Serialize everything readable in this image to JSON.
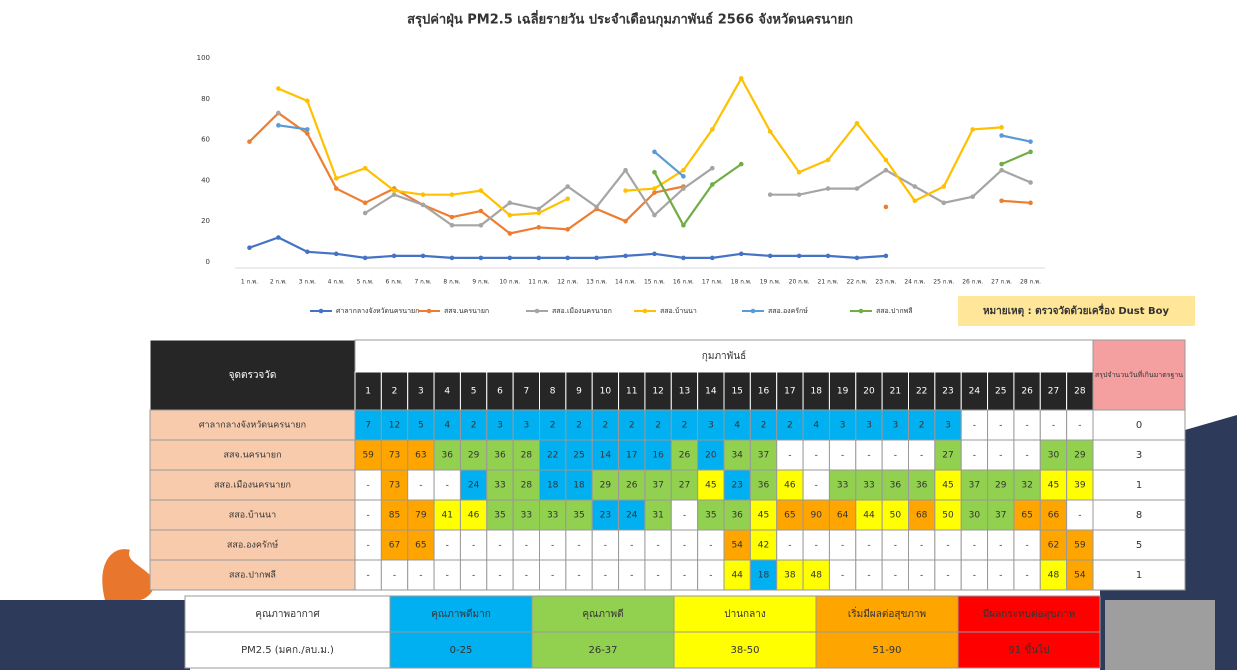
{
  "chart_data": {
    "type": "line",
    "title": "สรุปค่าฝุ่น PM2.5 เฉลี่ยรายวัน ประจำเดือนกุมภาพันธ์ 2566 จังหวัดนครนายก",
    "categories": [
      "1 ก.พ.",
      "2 ก.พ.",
      "3 ก.พ.",
      "4 ก.พ.",
      "5 ก.พ.",
      "6 ก.พ.",
      "7 ก.พ.",
      "8 ก.พ.",
      "9 ก.พ.",
      "10 ก.พ.",
      "11 ก.พ.",
      "12 ก.พ.",
      "13 ก.พ.",
      "14 ก.พ.",
      "15 ก.พ.",
      "16 ก.พ.",
      "17 ก.พ.",
      "18 ก.พ.",
      "19 ก.พ.",
      "20 ก.พ.",
      "21 ก.พ.",
      "22 ก.พ.",
      "23 ก.พ.",
      "24 ก.พ.",
      "25 ก.พ.",
      "26 ก.พ.",
      "27 ก.พ.",
      "28 ก.พ."
    ],
    "series": [
      {
        "name": "ศาลากลางจังหวัดนครนายก",
        "color": "#4472c4",
        "values": [
          7,
          12,
          5,
          4,
          2,
          3,
          3,
          2,
          2,
          2,
          2,
          2,
          2,
          3,
          4,
          2,
          2,
          4,
          3,
          3,
          3,
          2,
          3,
          null,
          null,
          null,
          null,
          null
        ]
      },
      {
        "name": "สสจ.นครนายก",
        "color": "#ed7d31",
        "values": [
          59,
          73,
          63,
          36,
          29,
          36,
          28,
          22,
          25,
          14,
          17,
          16,
          26,
          20,
          34,
          37,
          null,
          null,
          null,
          null,
          null,
          null,
          27,
          null,
          null,
          null,
          30,
          29
        ]
      },
      {
        "name": "สสอ.เมืองนครนายก",
        "color": "#a5a5a5",
        "values": [
          null,
          73,
          null,
          null,
          24,
          33,
          28,
          18,
          18,
          29,
          26,
          37,
          27,
          45,
          23,
          36,
          46,
          null,
          33,
          33,
          36,
          36,
          45,
          37,
          29,
          32,
          45,
          39
        ]
      },
      {
        "name": "สสอ.บ้านนา",
        "color": "#ffc000",
        "values": [
          null,
          85,
          79,
          41,
          46,
          35,
          33,
          33,
          35,
          23,
          24,
          31,
          null,
          35,
          36,
          45,
          65,
          90,
          64,
          44,
          50,
          68,
          50,
          30,
          37,
          65,
          66,
          null
        ]
      },
      {
        "name": "สสอ.องครักษ์",
        "color": "#5b9bd5",
        "values": [
          null,
          67,
          65,
          null,
          null,
          null,
          null,
          null,
          null,
          null,
          null,
          null,
          null,
          null,
          54,
          42,
          null,
          null,
          null,
          null,
          null,
          null,
          null,
          null,
          null,
          null,
          62,
          59
        ]
      },
      {
        "name": "สสอ.ปากพลี",
        "color": "#70ad47",
        "values": [
          null,
          null,
          null,
          null,
          null,
          null,
          null,
          null,
          null,
          null,
          null,
          null,
          null,
          null,
          44,
          18,
          38,
          48,
          null,
          null,
          null,
          null,
          null,
          null,
          null,
          null,
          48,
          54
        ]
      }
    ],
    "ylim": [
      0,
      100
    ],
    "yticks": [
      0,
      20,
      40,
      60,
      80,
      100
    ],
    "grid": false,
    "legend": "bottom",
    "note": "หมายเหตุ : ตรวจวัดด้วยเครื่อง Dust Boy"
  },
  "table": {
    "station_header": "จุดตรวจวัด",
    "month_header": "กุมภาพันธ์",
    "days": [
      1,
      2,
      3,
      4,
      5,
      6,
      7,
      8,
      9,
      10,
      11,
      12,
      13,
      14,
      15,
      16,
      17,
      18,
      19,
      20,
      21,
      22,
      23,
      24,
      25,
      26,
      27,
      28
    ],
    "summary_header": "สรุปจำนวนวันที่เกินมาตรฐาน",
    "missing_label": "-",
    "rows": [
      "ศาลากลางจังหวัดนครนายก",
      "สสจ.นครนายก",
      "สสอ.เมืองนครนายก",
      "สสอ.บ้านนา",
      "สสอ.องครักษ์",
      "สสอ.ปากพลี"
    ],
    "summary": [
      0,
      3,
      1,
      8,
      5,
      1
    ]
  },
  "quality_legend": {
    "header": "คุณภาพอากาศ",
    "unit": "PM2.5 (มคก./ลบ.ม.)",
    "levels": [
      {
        "label": "คุณภาพดีมาก",
        "range": "0-25",
        "color": "#00b0f0"
      },
      {
        "label": "คุณภาพดี",
        "range": "26-37",
        "color": "#92d050"
      },
      {
        "label": "ปานกลาง",
        "range": "38-50",
        "color": "#ffff00"
      },
      {
        "label": "เริ่มมีผลต่อสุขภาพ",
        "range": "51-90",
        "color": "#ffa500"
      },
      {
        "label": "มีผลกระทบต่อสุขภาพ",
        "range": "91 ขึ้นไป",
        "color": "#ff0000"
      }
    ]
  }
}
